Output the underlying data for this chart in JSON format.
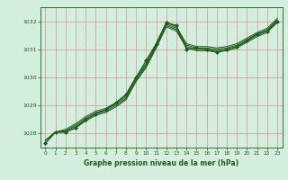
{
  "title": "Graphe pression niveau de la mer (hPa)",
  "bg_color": "#d4eedd",
  "grid_color": "#d4a0a0",
  "line_color": "#1a5c1a",
  "xlim": [
    -0.5,
    23.5
  ],
  "ylim": [
    1027.5,
    1032.5
  ],
  "yticks": [
    1028,
    1029,
    1030,
    1031,
    1032
  ],
  "xticks": [
    0,
    1,
    2,
    3,
    4,
    5,
    6,
    7,
    8,
    9,
    10,
    11,
    12,
    13,
    14,
    15,
    16,
    17,
    18,
    19,
    20,
    21,
    22,
    23
  ],
  "series": [
    [
      1027.75,
      1028.05,
      1028.05,
      1028.2,
      1028.45,
      1028.65,
      1028.75,
      1028.95,
      1029.2,
      1029.85,
      1030.35,
      1031.05,
      1031.8,
      1031.65,
      1031.05,
      1030.95,
      1030.95,
      1030.9,
      1030.95,
      1031.05,
      1031.25,
      1031.45,
      1031.6,
      1031.95
    ],
    [
      1027.75,
      1028.05,
      1028.1,
      1028.25,
      1028.5,
      1028.7,
      1028.8,
      1029.0,
      1029.25,
      1029.9,
      1030.4,
      1031.1,
      1031.85,
      1031.7,
      1031.1,
      1031.0,
      1031.0,
      1030.95,
      1031.0,
      1031.1,
      1031.3,
      1031.5,
      1031.65,
      1032.0
    ],
    [
      1027.75,
      1028.05,
      1028.1,
      1028.3,
      1028.55,
      1028.75,
      1028.85,
      1029.05,
      1029.3,
      1029.95,
      1030.45,
      1031.15,
      1031.9,
      1031.75,
      1031.15,
      1031.05,
      1031.05,
      1031.0,
      1031.05,
      1031.15,
      1031.35,
      1031.55,
      1031.7,
      1032.05
    ],
    [
      1027.75,
      1028.05,
      1028.15,
      1028.35,
      1028.6,
      1028.8,
      1028.9,
      1029.1,
      1029.35,
      1030.0,
      1030.5,
      1031.2,
      1031.95,
      1031.8,
      1031.2,
      1031.1,
      1031.1,
      1031.05,
      1031.1,
      1031.2,
      1031.4,
      1031.6,
      1031.75,
      1032.1
    ]
  ],
  "main_series": [
    1027.65,
    1028.05,
    1028.05,
    1028.2,
    1028.5,
    1028.7,
    1028.85,
    1029.1,
    1029.4,
    1030.0,
    1030.6,
    1031.2,
    1031.95,
    1031.85,
    1031.0,
    1031.05,
    1031.0,
    1030.9,
    1031.0,
    1031.1,
    1031.3,
    1031.55,
    1031.65,
    1032.0
  ]
}
